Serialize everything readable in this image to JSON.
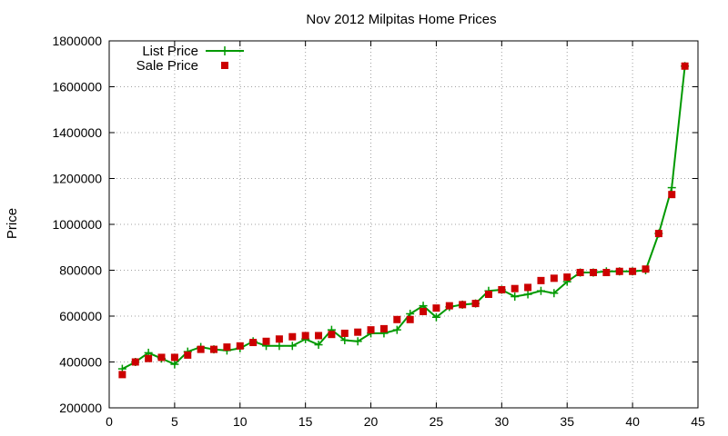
{
  "chart_data": {
    "type": "line",
    "title": "Nov 2012 Milpitas Home Prices",
    "xlabel": "",
    "ylabel": "Price",
    "xlim": [
      0,
      45
    ],
    "ylim": [
      200000,
      1800000
    ],
    "xticks": [
      0,
      5,
      10,
      15,
      20,
      25,
      30,
      35,
      40,
      45
    ],
    "yticks": [
      200000,
      400000,
      600000,
      800000,
      1000000,
      1200000,
      1400000,
      1600000,
      1800000
    ],
    "grid": true,
    "legend_position": "top-left",
    "x": [
      1,
      2,
      3,
      4,
      5,
      6,
      7,
      8,
      9,
      10,
      11,
      12,
      13,
      14,
      15,
      16,
      17,
      18,
      19,
      20,
      21,
      22,
      23,
      24,
      25,
      26,
      27,
      28,
      29,
      30,
      31,
      32,
      33,
      34,
      35,
      36,
      37,
      38,
      39,
      40,
      41,
      42,
      43,
      44
    ],
    "series": [
      {
        "name": "List Price",
        "style": "line+plus",
        "color": "#009900",
        "values": [
          370000,
          400000,
          440000,
          415000,
          390000,
          445000,
          465000,
          455000,
          450000,
          460000,
          490000,
          470000,
          470000,
          470000,
          500000,
          475000,
          540000,
          495000,
          490000,
          525000,
          525000,
          540000,
          610000,
          645000,
          595000,
          640000,
          650000,
          655000,
          710000,
          715000,
          685000,
          695000,
          710000,
          700000,
          750000,
          790000,
          790000,
          795000,
          795000,
          795000,
          800000,
          960000,
          1160000,
          1690000
        ]
      },
      {
        "name": "Sale Price",
        "style": "square",
        "color": "#cc0000",
        "values": [
          345000,
          400000,
          415000,
          420000,
          420000,
          430000,
          455000,
          455000,
          465000,
          470000,
          485000,
          490000,
          500000,
          510000,
          515000,
          515000,
          520000,
          525000,
          530000,
          540000,
          545000,
          585000,
          585000,
          620000,
          635000,
          645000,
          650000,
          655000,
          695000,
          715000,
          720000,
          725000,
          755000,
          765000,
          770000,
          790000,
          790000,
          790000,
          795000,
          795000,
          805000,
          960000,
          1130000,
          1690000
        ]
      }
    ]
  }
}
